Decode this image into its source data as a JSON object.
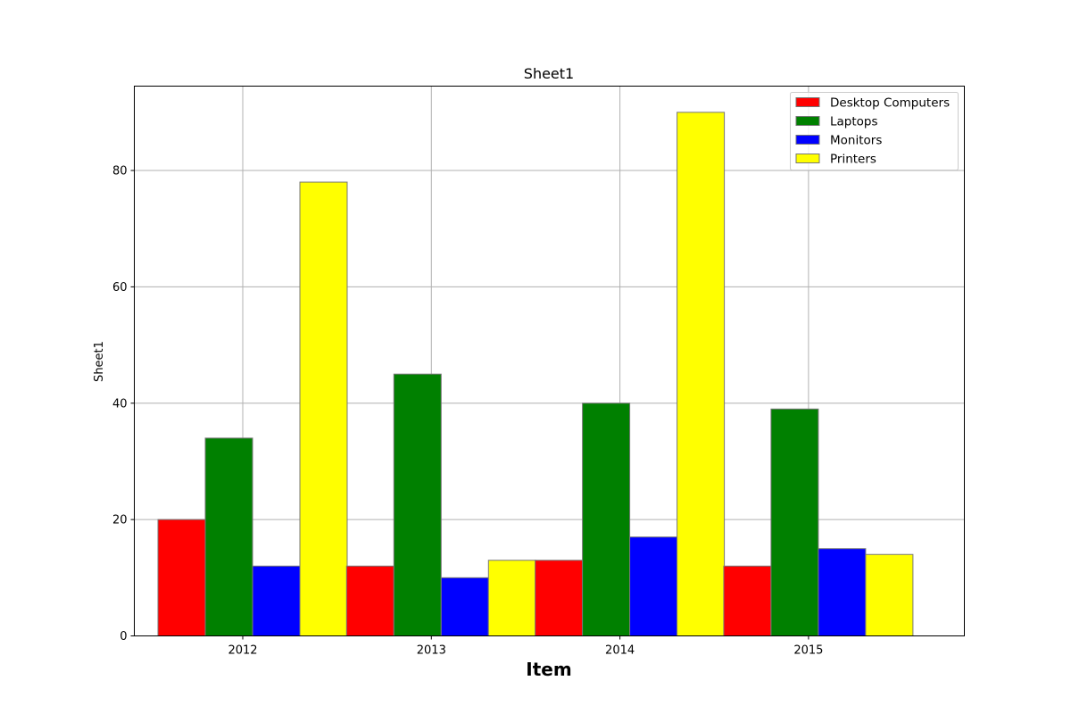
{
  "chart_data": {
    "type": "bar",
    "title": "Sheet1",
    "xlabel": "Item",
    "ylabel": "Sheet1",
    "categories": [
      "2012",
      "2013",
      "2014",
      "2015"
    ],
    "series": [
      {
        "name": "Desktop Computers",
        "color": "#ff0000",
        "values": [
          20,
          12,
          13,
          12
        ]
      },
      {
        "name": "Laptops",
        "color": "#008000",
        "values": [
          34,
          45,
          40,
          39
        ]
      },
      {
        "name": "Monitors",
        "color": "#0000ff",
        "values": [
          12,
          10,
          17,
          15
        ]
      },
      {
        "name": "Printers",
        "color": "#ffff00",
        "values": [
          78,
          13,
          90,
          14
        ]
      }
    ],
    "ylim": [
      0,
      94.5
    ],
    "yticks": [
      0,
      20,
      40,
      60,
      80
    ],
    "grid": true,
    "legend": "top-right"
  }
}
